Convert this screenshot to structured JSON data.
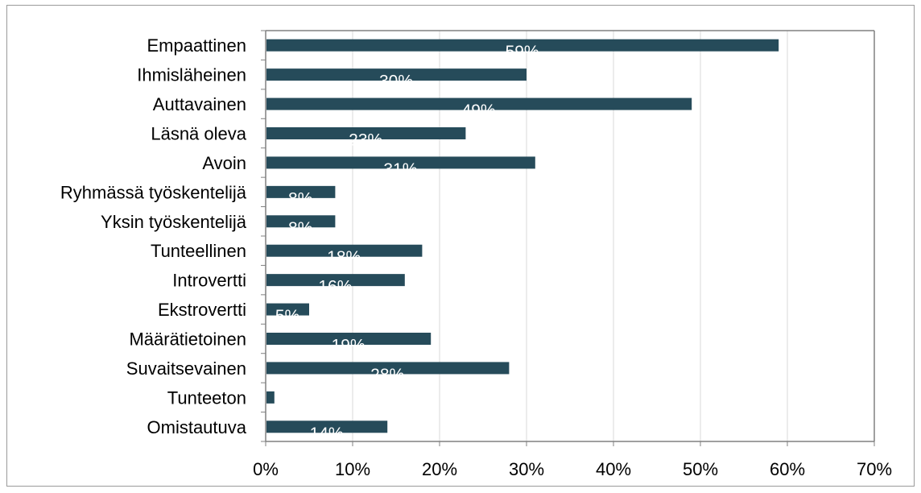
{
  "chart_data": {
    "type": "bar",
    "orientation": "horizontal",
    "categories": [
      "Empaattinen",
      "Ihmisläheinen",
      "Auttavainen",
      "Läsnä oleva",
      "Avoin",
      "Ryhmässä työskentelijä",
      "Yksin työskentelijä",
      "Tunteellinen",
      "Introvertti",
      "Ekstrovertti",
      "Määrätietoinen",
      "Suvaitsevainen",
      "Tunteeton",
      "Omistautuva"
    ],
    "values": [
      59,
      30,
      49,
      23,
      31,
      8,
      8,
      18,
      16,
      5,
      19,
      28,
      1,
      14
    ],
    "data_labels": [
      "59%",
      "30%",
      "49%",
      "23%",
      "31%",
      "8%",
      "8%",
      "18%",
      "16%",
      "5%",
      "19%",
      "28%",
      "",
      "14%"
    ],
    "xlim": [
      0,
      70
    ],
    "x_ticks": [
      "0%",
      "10%",
      "20%",
      "30%",
      "40%",
      "50%",
      "60%",
      "70%"
    ],
    "grid": "vertical",
    "bar_color": "#264b5a",
    "title": "",
    "xlabel": "",
    "ylabel": ""
  }
}
